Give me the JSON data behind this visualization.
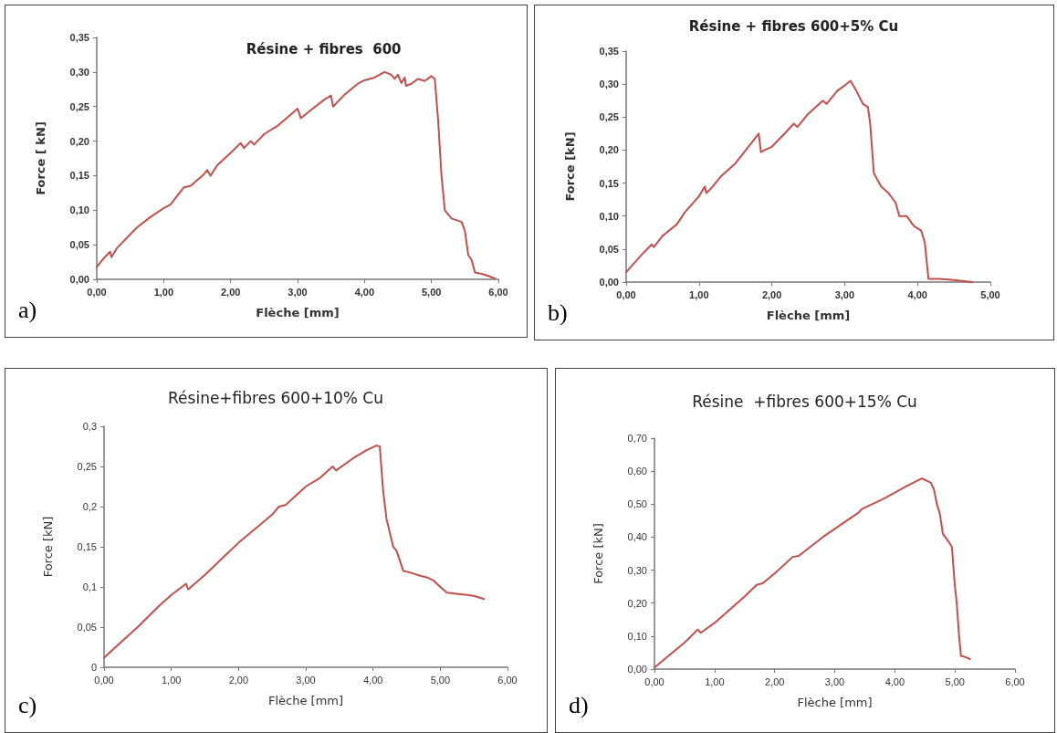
{
  "chart_data": [
    {
      "type": "line",
      "title": "Résine + fibres  600",
      "xlabel": "Flèche [mm]",
      "ylabel": "Force [ kN]",
      "annotations": [
        "a)"
      ],
      "xlim": [
        0,
        6
      ],
      "xticks": [
        {
          "value": 0,
          "label": "0,00"
        },
        {
          "value": 1,
          "label": "1,00"
        },
        {
          "value": 2,
          "label": "2,00"
        },
        {
          "value": 3,
          "label": "3,00"
        },
        {
          "value": 4,
          "label": "4,00"
        },
        {
          "value": 5,
          "label": "5,00"
        },
        {
          "value": 6,
          "label": "6,00"
        }
      ],
      "ylim": [
        0,
        0.35
      ],
      "yticks": [
        {
          "value": 0,
          "label": "0,00"
        },
        {
          "value": 0.05,
          "label": "0,05"
        },
        {
          "value": 0.1,
          "label": "0,10"
        },
        {
          "value": 0.15,
          "label": "0,15"
        },
        {
          "value": 0.2,
          "label": "0,20"
        },
        {
          "value": 0.25,
          "label": "0,25"
        },
        {
          "value": 0.3,
          "label": "0,30"
        },
        {
          "value": 0.35,
          "label": "0,35"
        }
      ],
      "series": [
        {
          "color": "#c0504d",
          "x": [
            0,
            0.1,
            0.2,
            0.22,
            0.3,
            0.5,
            0.6,
            0.8,
            1.0,
            1.1,
            1.3,
            1.4,
            1.6,
            1.65,
            1.7,
            1.8,
            2.0,
            2.15,
            2.2,
            2.3,
            2.35,
            2.5,
            2.7,
            3.0,
            3.05,
            3.2,
            3.4,
            3.5,
            3.53,
            3.7,
            3.9,
            4.0,
            4.15,
            4.3,
            4.4,
            4.45,
            4.5,
            4.55,
            4.6,
            4.62,
            4.7,
            4.8,
            4.9,
            5.0,
            5.05,
            5.1,
            5.15,
            5.2,
            5.3,
            5.45,
            5.5,
            5.55,
            5.6,
            5.65,
            5.75,
            5.85,
            5.95
          ],
          "values": [
            0.018,
            0.03,
            0.04,
            0.032,
            0.045,
            0.065,
            0.075,
            0.09,
            0.103,
            0.108,
            0.133,
            0.135,
            0.152,
            0.158,
            0.15,
            0.165,
            0.183,
            0.197,
            0.19,
            0.2,
            0.195,
            0.21,
            0.222,
            0.247,
            0.233,
            0.245,
            0.26,
            0.266,
            0.25,
            0.267,
            0.283,
            0.288,
            0.292,
            0.3,
            0.296,
            0.29,
            0.296,
            0.284,
            0.292,
            0.28,
            0.283,
            0.29,
            0.287,
            0.294,
            0.29,
            0.23,
            0.15,
            0.1,
            0.088,
            0.083,
            0.07,
            0.035,
            0.028,
            0.01,
            0.008,
            0.005,
            0.001
          ]
        }
      ]
    },
    {
      "type": "line",
      "title": "Résine + fibres 600+5% Cu",
      "xlabel": "Flèche [mm]",
      "ylabel": "Force [kN]",
      "annotations": [
        "b)"
      ],
      "xlim": [
        0,
        5
      ],
      "xticks": [
        {
          "value": 0,
          "label": "0,00"
        },
        {
          "value": 1,
          "label": "1,00"
        },
        {
          "value": 2,
          "label": "2,00"
        },
        {
          "value": 3,
          "label": "3,00"
        },
        {
          "value": 4,
          "label": "4,00"
        },
        {
          "value": 5,
          "label": "5,00"
        }
      ],
      "ylim": [
        0,
        0.35
      ],
      "yticks": [
        {
          "value": 0,
          "label": "0,00"
        },
        {
          "value": 0.05,
          "label": "0,05"
        },
        {
          "value": 0.1,
          "label": "0,10"
        },
        {
          "value": 0.15,
          "label": "0,15"
        },
        {
          "value": 0.2,
          "label": "0,20"
        },
        {
          "value": 0.25,
          "label": "0,25"
        },
        {
          "value": 0.3,
          "label": "0,30"
        },
        {
          "value": 0.35,
          "label": "0,35"
        }
      ],
      "series": [
        {
          "color": "#c0504d",
          "x": [
            0,
            0.2,
            0.35,
            0.38,
            0.5,
            0.7,
            0.8,
            1.0,
            1.08,
            1.1,
            1.15,
            1.3,
            1.5,
            1.7,
            1.82,
            1.85,
            1.9,
            2.0,
            2.2,
            2.3,
            2.35,
            2.5,
            2.7,
            2.75,
            2.9,
            3.0,
            3.08,
            3.15,
            3.25,
            3.32,
            3.35,
            3.4,
            3.5,
            3.6,
            3.7,
            3.75,
            3.85,
            3.95,
            4.05,
            4.1,
            4.15,
            4.3,
            4.5,
            4.75
          ],
          "values": [
            0.015,
            0.04,
            0.057,
            0.053,
            0.07,
            0.088,
            0.105,
            0.13,
            0.145,
            0.135,
            0.14,
            0.16,
            0.18,
            0.208,
            0.225,
            0.197,
            0.2,
            0.205,
            0.228,
            0.24,
            0.235,
            0.255,
            0.275,
            0.27,
            0.29,
            0.298,
            0.305,
            0.292,
            0.27,
            0.265,
            0.24,
            0.165,
            0.145,
            0.135,
            0.12,
            0.1,
            0.1,
            0.085,
            0.078,
            0.06,
            0.005,
            0.005,
            0.003,
            0.0
          ]
        }
      ]
    },
    {
      "type": "line",
      "title": "Résine+fibres 600+10% Cu",
      "xlabel": "Flèche [mm]",
      "ylabel": "Force [kN]",
      "annotations": [
        "c)"
      ],
      "xlim": [
        0,
        6
      ],
      "xticks": [
        {
          "value": 0,
          "label": "0,00"
        },
        {
          "value": 1,
          "label": "1,00"
        },
        {
          "value": 2,
          "label": "2,00"
        },
        {
          "value": 3,
          "label": "3,00"
        },
        {
          "value": 4,
          "label": "4,00"
        },
        {
          "value": 5,
          "label": "5,00"
        },
        {
          "value": 6,
          "label": "6,00"
        }
      ],
      "ylim": [
        0,
        0.3
      ],
      "yticks": [
        0,
        {
          "value": 0.05,
          "label": "0,05"
        },
        {
          "value": 0.1,
          "label": "0,1"
        },
        {
          "value": 0.15,
          "label": "0,15"
        },
        {
          "value": 0.2,
          "label": "0,2"
        },
        {
          "value": 0.25,
          "label": "0,25"
        },
        {
          "value": 0.3,
          "label": "0,3"
        }
      ],
      "series": [
        {
          "color": "#c0504d",
          "x": [
            0,
            0.3,
            0.5,
            0.8,
            1.0,
            1.22,
            1.25,
            1.5,
            2.0,
            2.5,
            2.6,
            2.7,
            3.0,
            3.2,
            3.4,
            3.45,
            3.7,
            3.9,
            4.05,
            4.1,
            4.15,
            4.2,
            4.3,
            4.35,
            4.45,
            4.55,
            4.7,
            4.8,
            4.9,
            5.0,
            5.1,
            5.3,
            5.5,
            5.65
          ],
          "values": [
            0.012,
            0.035,
            0.05,
            0.075,
            0.09,
            0.104,
            0.097,
            0.115,
            0.155,
            0.19,
            0.2,
            0.202,
            0.225,
            0.235,
            0.25,
            0.245,
            0.26,
            0.27,
            0.276,
            0.275,
            0.22,
            0.185,
            0.15,
            0.145,
            0.12,
            0.118,
            0.114,
            0.112,
            0.108,
            0.1,
            0.093,
            0.091,
            0.089,
            0.085
          ]
        }
      ]
    },
    {
      "type": "line",
      "title": "Résine  +fibres 600+15% Cu",
      "xlabel": "Flèche [mm]",
      "ylabel": "Force [kN]",
      "annotations": [
        "d)"
      ],
      "xlim": [
        0,
        6
      ],
      "xticks": [
        {
          "value": 0,
          "label": "0,00"
        },
        {
          "value": 1,
          "label": "1,00"
        },
        {
          "value": 2,
          "label": "2,00"
        },
        {
          "value": 3,
          "label": "3,00"
        },
        {
          "value": 4,
          "label": "4,00"
        },
        {
          "value": 5,
          "label": "5,00"
        },
        {
          "value": 6,
          "label": "6,00"
        }
      ],
      "ylim": [
        0,
        0.7
      ],
      "yticks": [
        {
          "value": 0,
          "label": "0,00"
        },
        {
          "value": 0.1,
          "label": "0,10"
        },
        {
          "value": 0.2,
          "label": "0,20"
        },
        {
          "value": 0.3,
          "label": "0,30"
        },
        {
          "value": 0.4,
          "label": "0,40"
        },
        {
          "value": 0.5,
          "label": "0,50"
        },
        {
          "value": 0.6,
          "label": "0,60"
        },
        {
          "value": 0.7,
          "label": "0,70"
        }
      ],
      "series": [
        {
          "color": "#c0504d",
          "x": [
            0,
            0.5,
            0.72,
            0.77,
            1.0,
            1.5,
            1.7,
            1.8,
            2.0,
            2.3,
            2.4,
            2.8,
            3.0,
            3.4,
            3.45,
            3.8,
            4.0,
            4.2,
            4.45,
            4.6,
            4.65,
            4.7,
            4.75,
            4.8,
            4.9,
            4.95,
            5.0,
            5.03,
            5.07,
            5.1,
            5.2,
            5.25
          ],
          "values": [
            0.005,
            0.08,
            0.12,
            0.11,
            0.14,
            0.22,
            0.255,
            0.26,
            0.29,
            0.34,
            0.343,
            0.4,
            0.425,
            0.475,
            0.485,
            0.515,
            0.535,
            0.555,
            0.578,
            0.565,
            0.545,
            0.5,
            0.47,
            0.41,
            0.385,
            0.37,
            0.25,
            0.2,
            0.1,
            0.04,
            0.035,
            0.03
          ]
        }
      ]
    }
  ]
}
